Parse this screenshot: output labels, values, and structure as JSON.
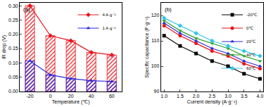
{
  "chart_data": [
    {
      "type": "combo",
      "title": "(a)",
      "x_label": "Temperature (℃)",
      "y_label": "IR drop (V)",
      "categories": [
        "-20",
        "0",
        "20",
        "40",
        "60"
      ],
      "series": [
        {
          "name": "4 A·g⁻¹",
          "color": "#e8141c",
          "marker": "diamond",
          "values": [
            0.3,
            0.195,
            0.178,
            0.137,
            0.128
          ]
        },
        {
          "name": "1 A·g⁻¹",
          "color": "#2b2bd8",
          "marker": "triangle-up",
          "values": [
            0.107,
            0.058,
            0.045,
            0.038,
            0.035
          ]
        }
      ],
      "ylim": [
        0,
        0.31
      ],
      "yticks": [
        {
          "value": 0,
          "label": "0.00"
        },
        {
          "value": 0.05,
          "label": "0.05"
        },
        {
          "value": 0.1,
          "label": "0.10"
        },
        {
          "value": 0.15,
          "label": "0.15"
        },
        {
          "value": 0.2,
          "label": "0.20"
        },
        {
          "value": 0.25,
          "label": "0.25"
        },
        {
          "value": 0.3,
          "label": "0.30"
        }
      ],
      "legend": "top-right",
      "grid": false
    },
    {
      "type": "line",
      "title": "(b)",
      "x_label": "Current density (A·g⁻¹)",
      "y_label": "Specific capacitance (F·g⁻¹)",
      "x": [
        1.0,
        1.5,
        2.0,
        2.5,
        3.0,
        3.5,
        4.0
      ],
      "series": [
        {
          "name": "-20℃",
          "color": "#000000",
          "marker": "square",
          "values": [
            112,
            108,
            105,
            102,
            100,
            97,
            95
          ]
        },
        {
          "name": "0℃",
          "color": "#e8141c",
          "marker": "circle",
          "values": [
            116,
            112,
            109,
            106,
            104,
            101,
            99
          ]
        },
        {
          "name": "20℃",
          "color": "#2b2bd8",
          "marker": "triangle-up",
          "values": [
            117,
            113,
            110,
            107,
            105,
            102,
            100
          ]
        },
        {
          "name": "40℃",
          "color": "#2ca02c",
          "marker": "triangle-down",
          "values": [
            118,
            114,
            111,
            109,
            107,
            104,
            102
          ]
        },
        {
          "name": "60℃",
          "color": "#33c7e8",
          "marker": "diamond",
          "values": [
            119,
            116,
            113,
            110,
            108,
            106,
            104
          ]
        }
      ],
      "xlim": [
        0.9,
        4.1
      ],
      "xticks": [
        {
          "value": 1,
          "label": "1.0"
        },
        {
          "value": 1.5,
          "label": "1.5"
        },
        {
          "value": 2,
          "label": "2.0"
        },
        {
          "value": 2.5,
          "label": "2.5"
        },
        {
          "value": 3,
          "label": "3.0"
        },
        {
          "value": 3.5,
          "label": "3.5"
        },
        {
          "value": 4,
          "label": "4.0"
        }
      ],
      "ylim": [
        90,
        125
      ],
      "yticks": [
        90,
        100,
        110,
        120
      ],
      "legend": "top-right",
      "grid": false
    }
  ]
}
